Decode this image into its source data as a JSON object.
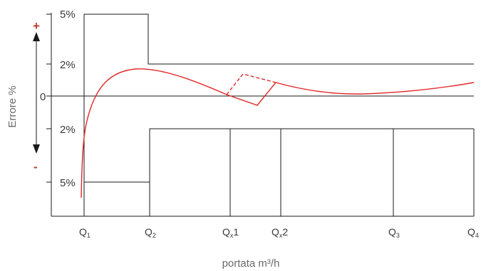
{
  "colors": {
    "line": "#1a1a1a",
    "curve": "#e02828",
    "sign": "#c0392b",
    "text": "#3a3a3a",
    "axis_title": "#6a6a6a"
  },
  "y_axis": {
    "title": "Errore %",
    "plus": "+",
    "minus": "-",
    "ticks": [
      {
        "label": "5%",
        "value": 5
      },
      {
        "label": "2%",
        "value": 2
      },
      {
        "label": "0",
        "value": 0
      },
      {
        "label": "2%",
        "value": -2
      },
      {
        "label": "5%",
        "value": -5
      }
    ]
  },
  "x_axis": {
    "title": "portata m³/h",
    "ticks": [
      {
        "main": "Q",
        "sub": "1",
        "suffix": ""
      },
      {
        "main": "Q",
        "sub": "2",
        "suffix": ""
      },
      {
        "main": "Q",
        "sub": "x",
        "suffix": "1"
      },
      {
        "main": "Q",
        "sub": "x",
        "suffix": "2"
      },
      {
        "main": "Q",
        "sub": "3",
        "suffix": ""
      },
      {
        "main": "Q",
        "sub": "4",
        "suffix": ""
      }
    ]
  }
}
